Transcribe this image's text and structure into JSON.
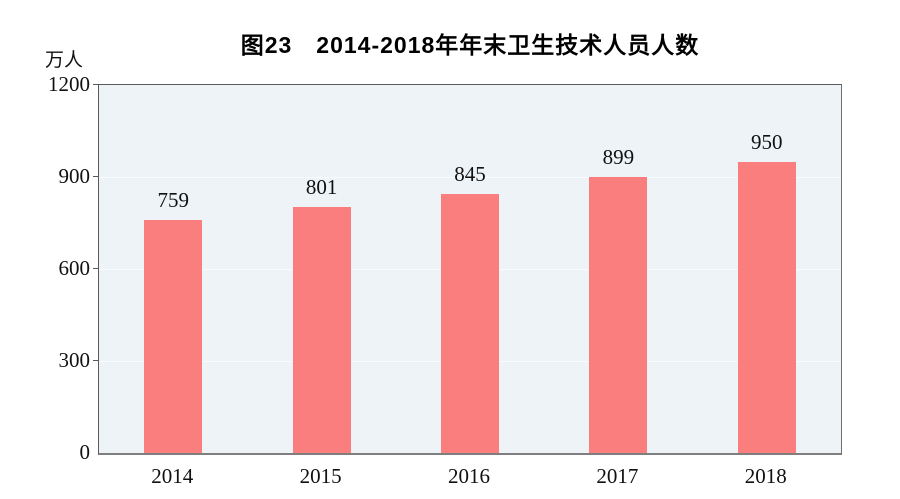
{
  "page": {
    "title": "图23　2014-2018年年末卫生技术人员人数",
    "unit_label": "万人"
  },
  "chart_data": {
    "type": "bar",
    "title": "图23　2014-2018年年末卫生技术人员人数",
    "unit_label": "万人",
    "categories": [
      "2014",
      "2015",
      "2016",
      "2017",
      "2018"
    ],
    "values": [
      759,
      801,
      845,
      899,
      950
    ],
    "xlabel": "",
    "ylabel": "万人",
    "ylim": [
      0,
      1200
    ],
    "yticks": [
      0,
      300,
      600,
      900,
      1200
    ],
    "grid": true,
    "legend": "none",
    "colors": {
      "bar": "#FA7E7E",
      "plot_background": "#EDF3F7",
      "gridline": "#F8FBFD",
      "axis": "#595959",
      "text": "#111111"
    }
  }
}
